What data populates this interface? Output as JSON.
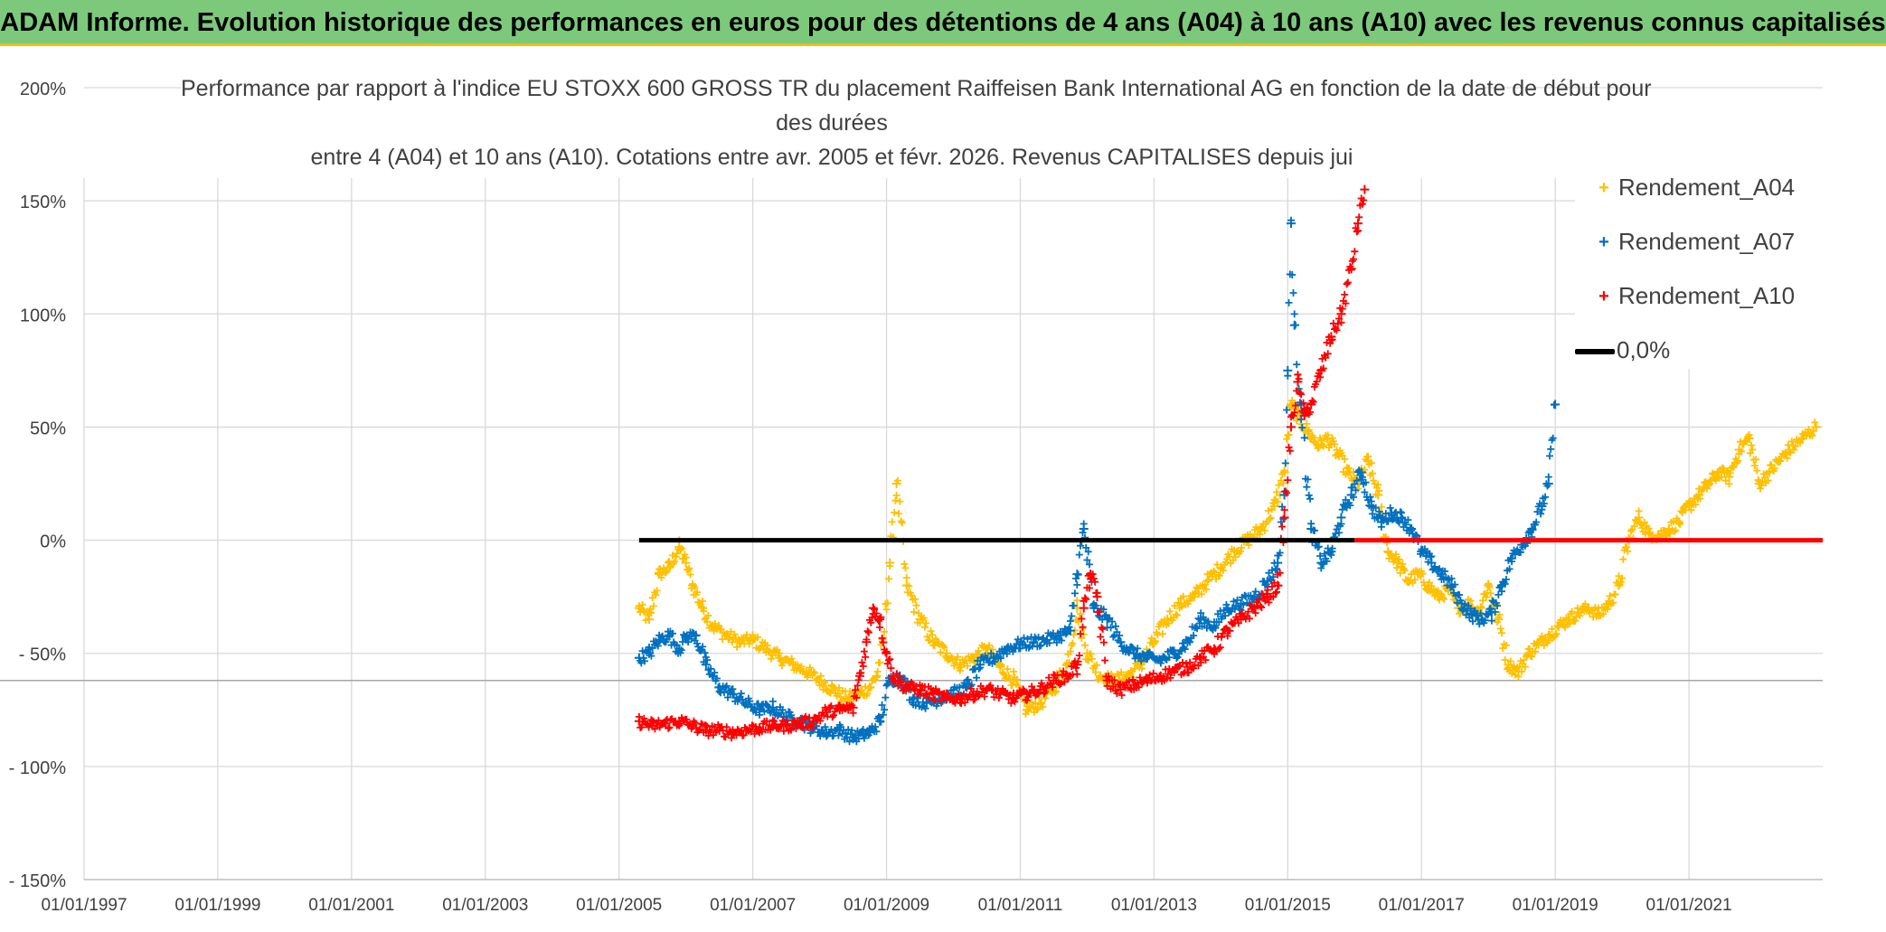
{
  "banner": {
    "title": "ADAM Informe. Evolution historique des performances en euros pour des détentions de 4 ans (A04) à 10 ans (A10) avec les revenus connus capitalisés"
  },
  "chart_data": {
    "type": "scatter",
    "title_lines": [
      "Performance par rapport à l'indice EU STOXX 600 GROSS TR  du placement Raiffeisen Bank International AG en fonction de la date de début pour",
      "des durées",
      "entre 4 (A04) et 10 ans (A10). Cotations entre avr. 2005 et févr. 2026. Revenus CAPITALISES depuis jui"
    ],
    "xlabel": "",
    "ylabel": "",
    "ylim": [
      -150,
      200
    ],
    "y_ticks": [
      "200%",
      "150%",
      "100%",
      "50%",
      "0%",
      "- 50%",
      "- 100%",
      "- 150%"
    ],
    "y_tick_values": [
      200,
      150,
      100,
      50,
      0,
      -50,
      -100,
      -150
    ],
    "xlim": [
      1997.0,
      2023.0
    ],
    "x_ticks": [
      "01/01/1997",
      "01/01/1999",
      "01/01/2001",
      "01/01/2003",
      "01/01/2005",
      "01/01/2007",
      "01/01/2009",
      "01/01/2011",
      "01/01/2013",
      "01/01/2015",
      "01/01/2017",
      "01/01/2019",
      "01/01/2021"
    ],
    "x_tick_values": [
      1997,
      1999,
      2001,
      2003,
      2005,
      2007,
      2009,
      2011,
      2013,
      2015,
      2017,
      2019,
      2021
    ],
    "grid": true,
    "legend_position": "top-right",
    "series": [
      {
        "name": "Rendement_A04",
        "color": "#FFC000",
        "marker": "+",
        "x": [
          2005.3,
          2005.45,
          2005.6,
          2005.75,
          2005.9,
          2006.0,
          2006.1,
          2006.25,
          2006.4,
          2006.6,
          2006.8,
          2007.0,
          2007.2,
          2007.4,
          2007.6,
          2007.8,
          2008.0,
          2008.2,
          2008.4,
          2008.6,
          2008.75,
          2008.85,
          2008.95,
          2009.05,
          2009.15,
          2009.3,
          2009.5,
          2009.7,
          2009.9,
          2010.1,
          2010.3,
          2010.5,
          2010.7,
          2010.9,
          2011.1,
          2011.3,
          2011.5,
          2011.7,
          2011.85,
          2012.0,
          2012.2,
          2012.4,
          2012.6,
          2012.8,
          2013.0,
          2013.2,
          2013.4,
          2013.6,
          2013.8,
          2014.0,
          2014.2,
          2014.4,
          2014.6,
          2014.8,
          2014.95,
          2015.05,
          2015.15,
          2015.3,
          2015.45,
          2015.6,
          2015.75,
          2015.9,
          2016.05,
          2016.2,
          2016.35,
          2016.5,
          2016.65,
          2016.8,
          2016.95,
          2017.1,
          2017.25,
          2017.4,
          2017.55,
          2017.7,
          2017.85,
          2018.0,
          2018.15,
          2018.3,
          2018.45,
          2018.6,
          2018.75,
          2018.9,
          2019.05,
          2019.2,
          2019.35,
          2019.5,
          2019.65,
          2019.8,
          2019.95,
          2020.1,
          2020.25,
          2020.4,
          2020.55,
          2020.7,
          2020.85,
          2021.0,
          2021.15,
          2021.3,
          2021.45,
          2021.6,
          2021.75,
          2021.9,
          2022.05,
          2022.2,
          2022.35,
          2022.5,
          2022.7,
          2022.9
        ],
        "y": [
          -30,
          -35,
          -15,
          -12,
          -3,
          -10,
          -20,
          -30,
          -38,
          -42,
          -45,
          -44,
          -48,
          -52,
          -55,
          -58,
          -62,
          -66,
          -70,
          -68,
          -65,
          -60,
          -45,
          -10,
          25,
          -20,
          -35,
          -45,
          -50,
          -55,
          -52,
          -48,
          -56,
          -62,
          -75,
          -72,
          -65,
          -55,
          -30,
          -50,
          -60,
          -62,
          -60,
          -55,
          -45,
          -35,
          -28,
          -25,
          -18,
          -12,
          -5,
          0,
          5,
          15,
          30,
          60,
          55,
          48,
          42,
          45,
          38,
          30,
          25,
          35,
          20,
          -5,
          -10,
          -18,
          -15,
          -20,
          -25,
          -22,
          -30,
          -28,
          -32,
          -20,
          -35,
          -55,
          -58,
          -50,
          -46,
          -42,
          -38,
          -35,
          -32,
          -30,
          -33,
          -28,
          -20,
          0,
          10,
          3,
          2,
          5,
          8,
          15,
          20,
          25,
          30,
          28,
          40,
          45,
          25,
          30,
          35,
          40,
          45,
          50
        ]
      },
      {
        "name": "Rendement_A07",
        "color": "#0070C0",
        "marker": "+",
        "x": [
          2005.3,
          2005.45,
          2005.6,
          2005.75,
          2005.9,
          2006.0,
          2006.15,
          2006.3,
          2006.5,
          2006.7,
          2006.9,
          2007.1,
          2007.3,
          2007.5,
          2007.7,
          2007.9,
          2008.1,
          2008.3,
          2008.5,
          2008.65,
          2008.75,
          2008.9,
          2009.05,
          2009.2,
          2009.4,
          2009.6,
          2009.8,
          2010.0,
          2010.2,
          2010.4,
          2010.6,
          2010.8,
          2011.0,
          2011.2,
          2011.4,
          2011.6,
          2011.75,
          2011.85,
          2011.95,
          2012.1,
          2012.3,
          2012.5,
          2012.7,
          2012.9,
          2013.1,
          2013.3,
          2013.5,
          2013.7,
          2013.9,
          2014.1,
          2014.3,
          2014.5,
          2014.7,
          2014.85,
          2014.95,
          2015.0,
          2015.05,
          2015.1,
          2015.2,
          2015.35,
          2015.5,
          2015.65,
          2015.8,
          2015.95,
          2016.1,
          2016.25,
          2016.4,
          2016.55,
          2016.7,
          2016.85,
          2017.0,
          2017.15,
          2017.3,
          2017.45,
          2017.6,
          2017.75,
          2017.9,
          2018.05,
          2018.2,
          2018.35,
          2018.5,
          2018.65,
          2018.8,
          2018.9,
          2019.0
        ],
        "y": [
          -52,
          -50,
          -44,
          -42,
          -48,
          -43,
          -42,
          -55,
          -65,
          -68,
          -72,
          -75,
          -74,
          -78,
          -80,
          -83,
          -85,
          -84,
          -87,
          -86,
          -85,
          -80,
          -62,
          -60,
          -70,
          -72,
          -70,
          -68,
          -65,
          -55,
          -52,
          -48,
          -46,
          -45,
          -44,
          -42,
          -40,
          -15,
          5,
          -30,
          -35,
          -45,
          -50,
          -52,
          -53,
          -50,
          -45,
          -35,
          -38,
          -30,
          -28,
          -25,
          -18,
          -10,
          20,
          75,
          140,
          95,
          60,
          5,
          -10,
          -5,
          10,
          20,
          30,
          15,
          8,
          12,
          10,
          5,
          -5,
          -10,
          -15,
          -20,
          -28,
          -33,
          -35,
          -32,
          -20,
          -8,
          -2,
          5,
          15,
          25,
          60
        ]
      },
      {
        "name": "Rendement_A10",
        "color": "#FF0000",
        "marker": "+",
        "x": [
          2005.3,
          2005.5,
          2005.7,
          2005.9,
          2006.1,
          2006.3,
          2006.5,
          2006.7,
          2006.9,
          2007.1,
          2007.3,
          2007.5,
          2007.7,
          2007.9,
          2008.1,
          2008.3,
          2008.5,
          2008.6,
          2008.7,
          2008.8,
          2008.9,
          2009.0,
          2009.1,
          2009.3,
          2009.5,
          2009.7,
          2009.9,
          2010.1,
          2010.3,
          2010.5,
          2010.7,
          2010.9,
          2011.1,
          2011.3,
          2011.5,
          2011.7,
          2011.85,
          2011.95,
          2012.05,
          2012.15,
          2012.3,
          2012.5,
          2012.7,
          2012.9,
          2013.1,
          2013.3,
          2013.5,
          2013.7,
          2013.9,
          2014.1,
          2014.3,
          2014.5,
          2014.7,
          2014.85,
          2014.95,
          2015.05,
          2015.15,
          2015.25,
          2015.35,
          2015.5,
          2015.65,
          2015.8,
          2015.95,
          2016.05,
          2016.15
        ],
        "y": [
          -80,
          -82,
          -81,
          -80,
          -82,
          -84,
          -84,
          -85,
          -84,
          -83,
          -82,
          -82,
          -81,
          -80,
          -76,
          -75,
          -74,
          -60,
          -45,
          -30,
          -35,
          -50,
          -60,
          -65,
          -66,
          -68,
          -70,
          -70,
          -68,
          -66,
          -68,
          -70,
          -68,
          -66,
          -62,
          -60,
          -55,
          -30,
          -15,
          -25,
          -62,
          -66,
          -64,
          -62,
          -60,
          -58,
          -56,
          -52,
          -48,
          -40,
          -35,
          -30,
          -25,
          -20,
          10,
          50,
          70,
          55,
          60,
          75,
          90,
          100,
          120,
          140,
          155
        ]
      },
      {
        "name": "0,0%",
        "color": "#000000",
        "marker": "line",
        "x": [
          2005.3,
          2016.0
        ],
        "y": [
          0,
          0
        ]
      },
      {
        "name": "",
        "color": "#FF0000",
        "marker": "line",
        "x": [
          2016.0,
          2023.0
        ],
        "y": [
          0,
          0
        ]
      }
    ]
  }
}
